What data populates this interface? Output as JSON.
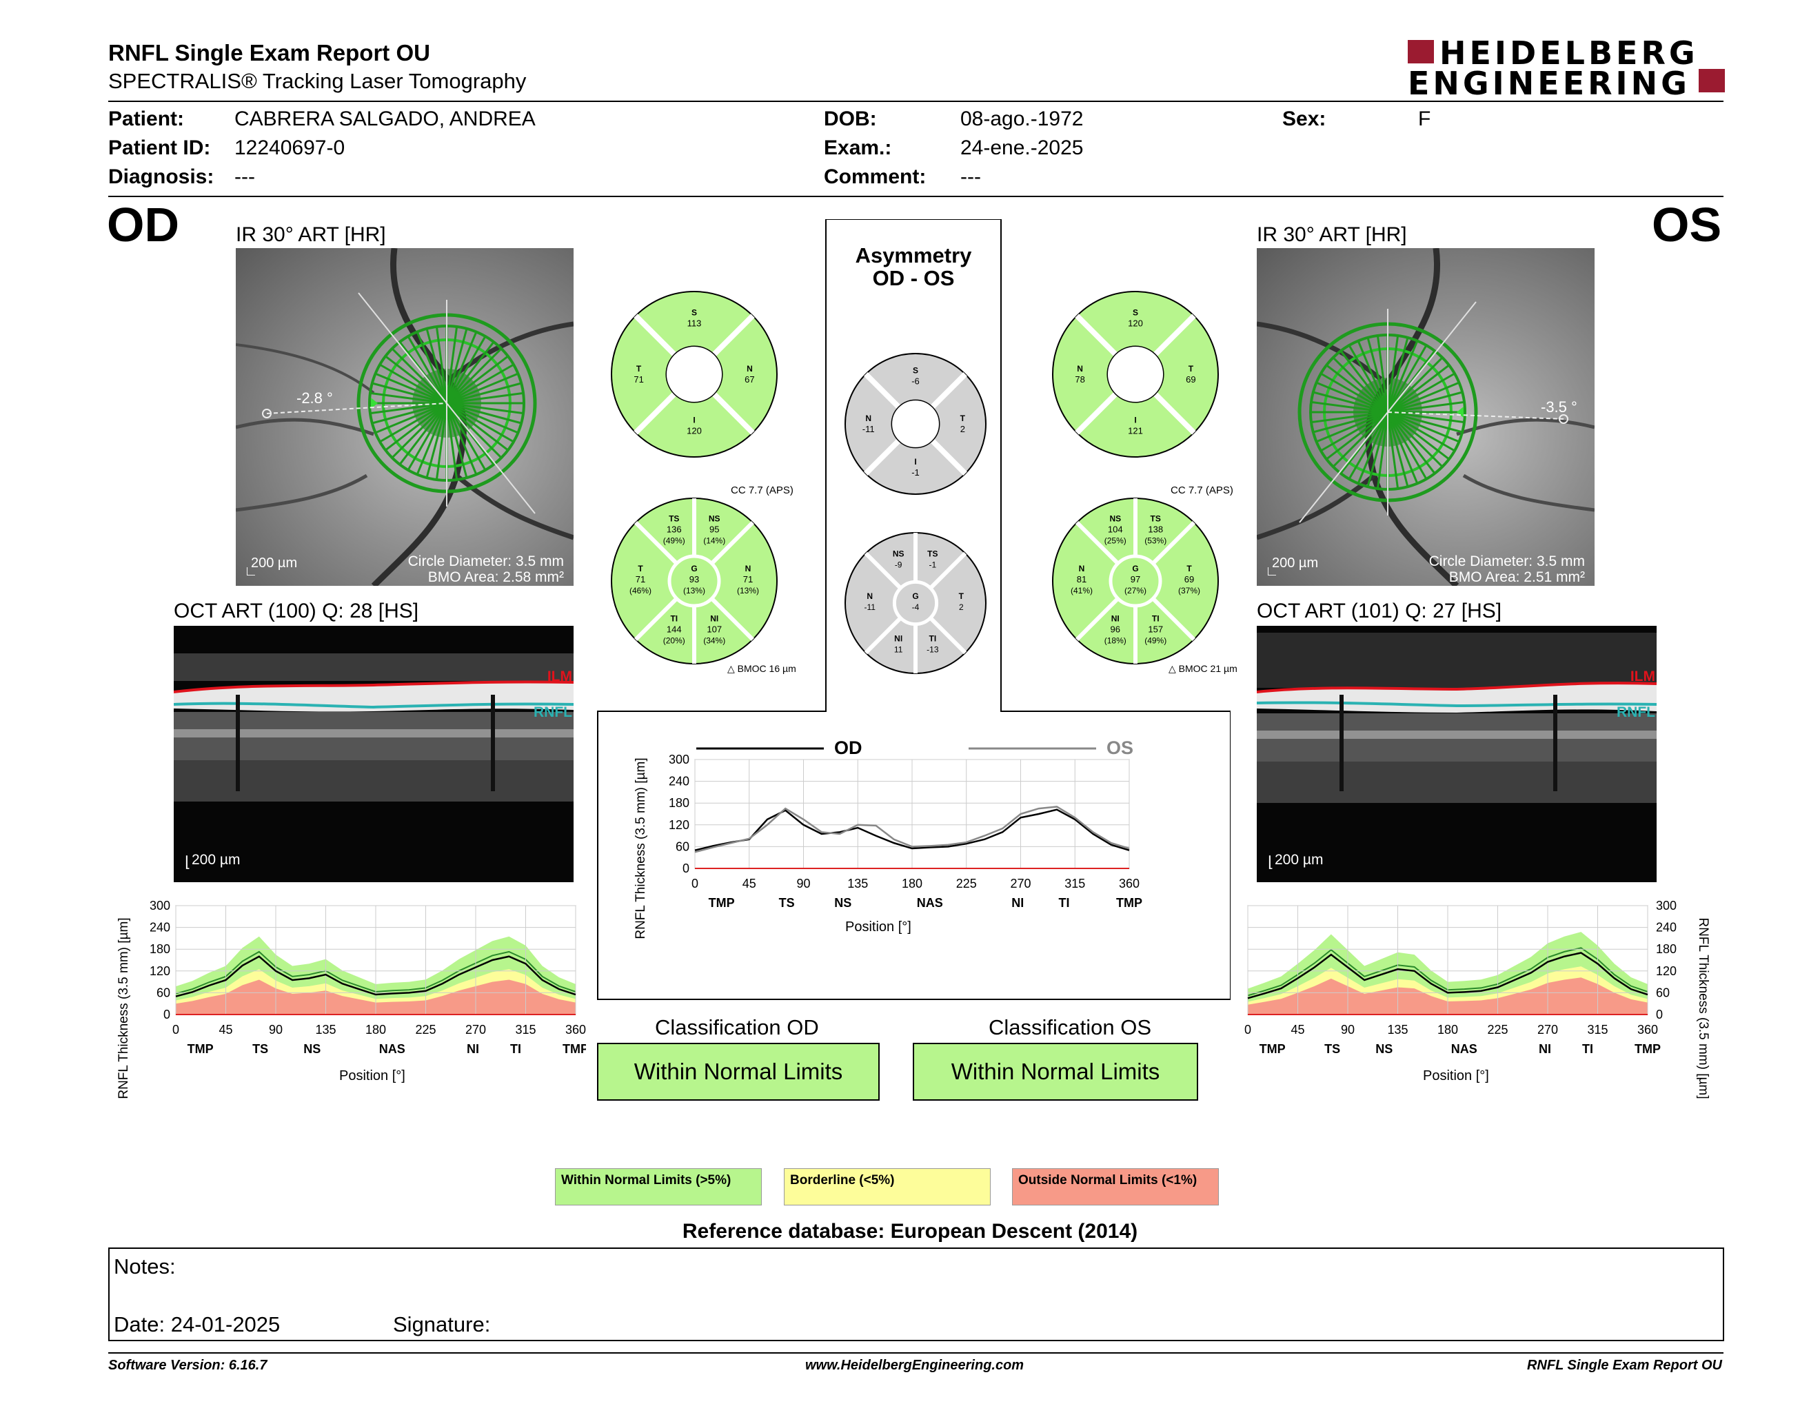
{
  "header": {
    "title": "RNFL Single Exam Report OU",
    "subtitle": "SPECTRALIS® Tracking Laser Tomography",
    "brand_line1": "HEIDELBERG",
    "brand_line2": "ENGINEERING",
    "brand_color": "#9b1b30"
  },
  "patient": {
    "patient_label": "Patient:",
    "patient_value": "CABRERA SALGADO, ANDREA",
    "id_label": "Patient ID:",
    "id_value": "12240697-0",
    "diagnosis_label": "Diagnosis:",
    "diagnosis_value": "---",
    "dob_label": "DOB:",
    "dob_value": "08-ago.-1972",
    "exam_label": "Exam.:",
    "exam_value": "24-ene.-2025",
    "comment_label": "Comment:",
    "comment_value": "---",
    "sex_label": "Sex:",
    "sex_value": "F"
  },
  "od": {
    "eye": "OD",
    "ir_title": "IR 30° ART [HR]",
    "angle": "-2.8 °",
    "scale": "200 µm",
    "circle_diameter": "Circle Diameter: 3.5 mm",
    "bmo_area": "BMO Area: 2.58 mm²",
    "oct_title": "OCT ART (100) Q: 28 [HS]",
    "oct_scale": "200 µm",
    "ilm": "ILM",
    "rnfl": "RNFL",
    "sectors6": {
      "S": "113",
      "T": "71",
      "N": "67",
      "I": "120"
    },
    "cc": "CC 7.7 (APS)",
    "sectors_full": {
      "TS": [
        "136",
        "(49%)"
      ],
      "NS": [
        "95",
        "(14%)"
      ],
      "T": [
        "71",
        "(46%)"
      ],
      "G": [
        "93",
        "(13%)"
      ],
      "N": [
        "71",
        "(13%)"
      ],
      "TI": [
        "144",
        "(20%)"
      ],
      "NI": [
        "107",
        "(34%)"
      ]
    },
    "bmoc": "BMOC 16 µm"
  },
  "os": {
    "eye": "OS",
    "ir_title": "IR 30° ART [HR]",
    "angle": "-3.5 °",
    "scale": "200 µm",
    "circle_diameter": "Circle Diameter: 3.5 mm",
    "bmo_area": "BMO Area: 2.51 mm²",
    "oct_title": "OCT ART (101) Q: 27 [HS]",
    "oct_scale": "200 µm",
    "ilm": "ILM",
    "rnfl": "RNFL",
    "sectors6": {
      "S": "120",
      "N": "78",
      "T": "69",
      "I": "121"
    },
    "cc": "CC 7.7 (APS)",
    "sectors_full": {
      "NS": [
        "104",
        "(25%)"
      ],
      "TS": [
        "138",
        "(53%)"
      ],
      "N": [
        "81",
        "(41%)"
      ],
      "G": [
        "97",
        "(27%)"
      ],
      "T": [
        "69",
        "(37%)"
      ],
      "NI": [
        "96",
        "(18%)"
      ],
      "TI": [
        "157",
        "(49%)"
      ]
    },
    "bmoc": "BMOC 21 µm"
  },
  "asymmetry": {
    "title1": "Asymmetry",
    "title2": "OD - OS",
    "sectors6": {
      "S": "-6",
      "N": "-11",
      "T": "2",
      "I": "-1"
    },
    "sectors_full": {
      "NS": "-9",
      "TS": "-1",
      "N": "-11",
      "G": "-4",
      "T": "2",
      "NI": "11",
      "TI": "-13"
    },
    "legend_od": "OD",
    "legend_os": "OS"
  },
  "charts": {
    "ylabel": "RNFL Thickness (3.5 mm) [µm]",
    "xlabel": "Position [°]",
    "yticks": [
      "300",
      "240",
      "180",
      "120",
      "60",
      "0"
    ],
    "yticks_mid": [
      "300",
      "240",
      "180",
      "120",
      "60",
      "0"
    ],
    "xticks": [
      "0",
      "45",
      "90",
      "135",
      "180",
      "225",
      "270",
      "315",
      "360"
    ],
    "xcats_od": [
      "TMP",
      "TS",
      "NS",
      "NAS",
      "NI",
      "TI",
      "TMP"
    ],
    "xcats_mid": [
      "TMP",
      "TS",
      "NS",
      "NAS",
      "NI",
      "TI",
      "TMP"
    ]
  },
  "chart_data": [
    {
      "type": "line",
      "name": "OD RNFL profile",
      "x": [
        0,
        15,
        30,
        45,
        60,
        75,
        90,
        105,
        120,
        135,
        150,
        165,
        180,
        195,
        210,
        225,
        240,
        255,
        270,
        285,
        300,
        315,
        330,
        345,
        360
      ],
      "series": [
        {
          "name": "OD",
          "values": [
            50,
            62,
            80,
            95,
            135,
            160,
            120,
            95,
            100,
            110,
            85,
            70,
            55,
            58,
            60,
            65,
            85,
            110,
            130,
            150,
            160,
            140,
            95,
            70,
            55
          ]
        }
      ],
      "ylim": [
        0,
        300
      ],
      "xlim": [
        0,
        360
      ]
    },
    {
      "type": "line",
      "name": "OD-OS comparison",
      "x": [
        0,
        15,
        30,
        45,
        60,
        75,
        90,
        105,
        120,
        135,
        150,
        165,
        180,
        195,
        210,
        225,
        240,
        255,
        270,
        285,
        300,
        315,
        330,
        345,
        360
      ],
      "series": [
        {
          "name": "OD",
          "values": [
            50,
            62,
            72,
            80,
            135,
            160,
            120,
            95,
            100,
            112,
            90,
            70,
            55,
            58,
            60,
            68,
            80,
            100,
            140,
            150,
            162,
            135,
            95,
            65,
            50
          ]
        },
        {
          "name": "OS",
          "values": [
            45,
            58,
            70,
            82,
            120,
            165,
            135,
            100,
            95,
            120,
            118,
            80,
            60,
            62,
            65,
            72,
            90,
            110,
            150,
            165,
            170,
            140,
            100,
            70,
            55
          ]
        }
      ],
      "ylim": [
        0,
        300
      ],
      "xlim": [
        0,
        360
      ]
    },
    {
      "type": "line",
      "name": "OS RNFL profile",
      "x": [
        0,
        15,
        30,
        45,
        60,
        75,
        90,
        105,
        120,
        135,
        150,
        165,
        180,
        195,
        210,
        225,
        240,
        255,
        270,
        285,
        300,
        315,
        330,
        345,
        360
      ],
      "series": [
        {
          "name": "OS",
          "values": [
            45,
            58,
            72,
            100,
            130,
            165,
            130,
            95,
            110,
            125,
            120,
            85,
            60,
            62,
            65,
            75,
            95,
            115,
            145,
            160,
            170,
            140,
            100,
            70,
            55
          ]
        }
      ],
      "ylim": [
        0,
        300
      ],
      "xlim": [
        0,
        360
      ]
    }
  ],
  "classification": {
    "od_label": "Classification OD",
    "od_value": "Within Normal Limits",
    "os_label": "Classification OS",
    "os_value": "Within Normal Limits"
  },
  "legend": {
    "wnl": "Within Normal Limits (>5%)",
    "bl": "Borderline (<5%)",
    "onl": "Outside Normal Limits (<1%)",
    "green": "#b7f58d",
    "yellow": "#fdfd9a",
    "red": "#f79a88"
  },
  "reference": "Reference database: European Descent (2014)",
  "notes": {
    "notes_label": "Notes:",
    "date_label": "Date: 24-01-2025",
    "signature_label": "Signature:"
  },
  "footer": {
    "software": "Software Version: 6.16.7",
    "website": "www.HeidelbergEngineering.com",
    "report": "RNFL Single Exam Report OU"
  }
}
